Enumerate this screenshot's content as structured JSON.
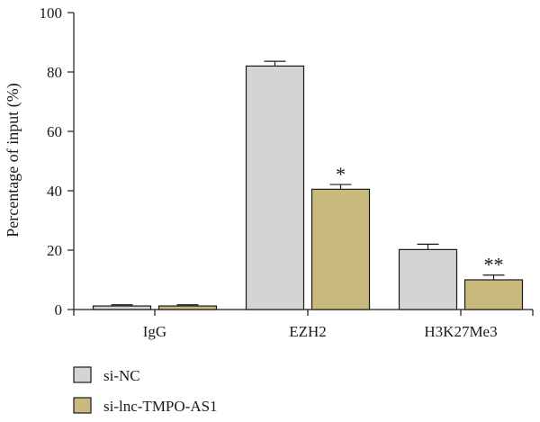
{
  "chart_data": {
    "type": "bar",
    "title": "",
    "xlabel": "",
    "ylabel": "Percentage of input (%)",
    "ylim": [
      0,
      100
    ],
    "yticks": [
      0,
      20,
      40,
      60,
      80,
      100
    ],
    "categories": [
      "IgG",
      "EZH2",
      "H3K27Me3"
    ],
    "series": [
      {
        "name": "si-NC",
        "color": "#d4d4d6",
        "values": [
          1.2,
          82,
          20.2
        ],
        "errors": [
          0.4,
          1.6,
          1.8
        ]
      },
      {
        "name": "si-lnc-TMPO-AS1",
        "color": "#c8b97c",
        "values": [
          1.2,
          40.5,
          10
        ],
        "errors": [
          0.4,
          1.6,
          1.6
        ]
      }
    ],
    "annotations": [
      {
        "category": "EZH2",
        "series": "si-lnc-TMPO-AS1",
        "text": "*"
      },
      {
        "category": "H3K27Me3",
        "series": "si-lnc-TMPO-AS1",
        "text": "**"
      }
    ],
    "legend_position": "bottom-left",
    "grid": false
  }
}
